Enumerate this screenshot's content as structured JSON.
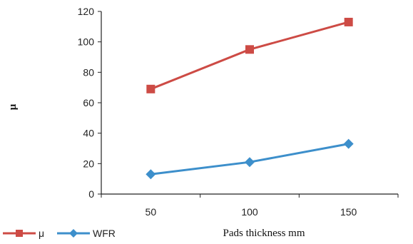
{
  "chart_data": {
    "type": "line",
    "categories": [
      "50",
      "100",
      "150"
    ],
    "x": [
      50,
      100,
      150
    ],
    "series": [
      {
        "name": "μ",
        "values": [
          69,
          95,
          113
        ],
        "color": "#cd4b45",
        "marker": "square"
      },
      {
        "name": "WFR",
        "values": [
          13,
          21,
          33
        ],
        "color": "#3d8fcb",
        "marker": "diamond"
      }
    ],
    "xlabel": "Pads thickness mm",
    "ylabel": "μ",
    "ylim": [
      0,
      120
    ],
    "yticks": [
      "0",
      "20",
      "40",
      "60",
      "80",
      "100",
      "120"
    ],
    "grid": false,
    "legend_position": "bottom-left"
  }
}
